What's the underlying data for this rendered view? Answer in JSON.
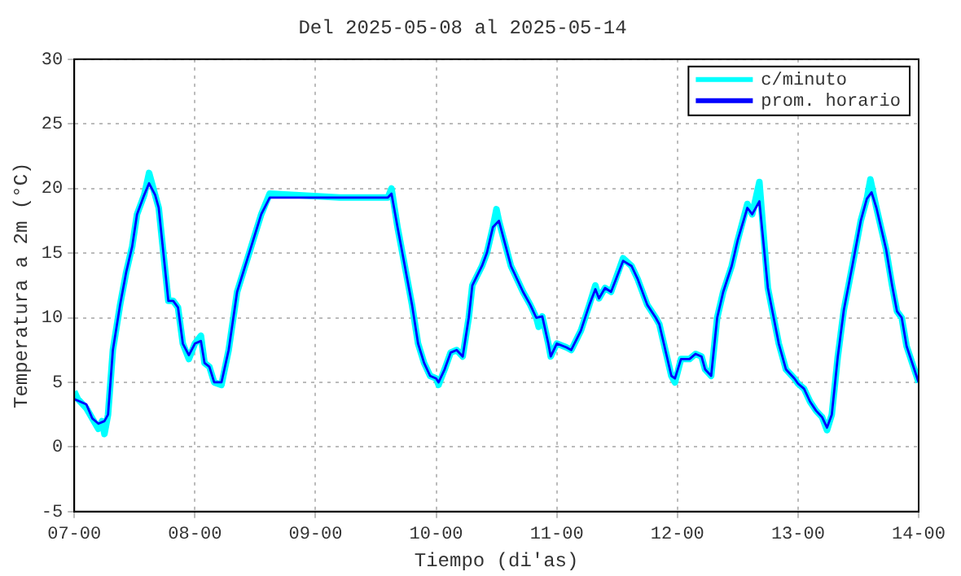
{
  "chart_data": {
    "type": "line",
    "title": "Del 2025-05-08 al 2025-05-14",
    "xlabel": "Tiempo (di'as)",
    "ylabel": "Temperatura a 2m (°C)",
    "xlim": [
      "2025-05-07T00:00",
      "2025-05-14T00:00"
    ],
    "xticks": [
      {
        "value": "2025-05-07T00:00",
        "label": "07-00"
      },
      {
        "value": "2025-05-08T00:00",
        "label": "08-00"
      },
      {
        "value": "2025-05-09T00:00",
        "label": "09-00"
      },
      {
        "value": "2025-05-10T00:00",
        "label": "10-00"
      },
      {
        "value": "2025-05-11T00:00",
        "label": "11-00"
      },
      {
        "value": "2025-05-12T00:00",
        "label": "12-00"
      },
      {
        "value": "2025-05-13T00:00",
        "label": "13-00"
      },
      {
        "value": "2025-05-14T00:00",
        "label": "14-00"
      }
    ],
    "ylim": [
      -5,
      30
    ],
    "yticks": [
      -5,
      0,
      5,
      10,
      15,
      20,
      25,
      30
    ],
    "grid": true,
    "legend": "top right",
    "marker": "none",
    "line_style": "solid",
    "series": [
      {
        "name": "c/minuto",
        "color": "#00ffff",
        "x": [
          "2025-05-07T00:00",
          "2025-05-07T00:43",
          "2025-05-07T01:12",
          "2025-05-07T02:24",
          "2025-05-07T03:36",
          "2025-05-07T04:48",
          "2025-05-07T05:31",
          "2025-05-07T06:00",
          "2025-05-07T06:43",
          "2025-05-07T07:41",
          "2025-05-07T09:07",
          "2025-05-07T10:19",
          "2025-05-07T11:31",
          "2025-05-07T12:29",
          "2025-05-07T13:55",
          "2025-05-07T14:53",
          "2025-05-07T16:05",
          "2025-05-07T16:48",
          "2025-05-07T18:00",
          "2025-05-07T18:43",
          "2025-05-07T19:41",
          "2025-05-07T20:38",
          "2025-05-07T21:36",
          "2025-05-07T22:48",
          "2025-05-08T00:00",
          "2025-05-08T01:12",
          "2025-05-08T01:55",
          "2025-05-08T02:53",
          "2025-05-08T03:50",
          "2025-05-08T05:17",
          "2025-05-08T06:43",
          "2025-05-08T08:24",
          "2025-05-08T10:48",
          "2025-05-08T13:12",
          "2025-05-08T14:53",
          "2025-05-09T04:48",
          "2025-05-09T14:24",
          "2025-05-09T15:07",
          "2025-05-09T16:19",
          "2025-05-09T17:17",
          "2025-05-09T19:12",
          "2025-05-09T20:24",
          "2025-05-09T21:36",
          "2025-05-09T22:48",
          "2025-05-10T00:00",
          "2025-05-10T00:29",
          "2025-05-10T01:41",
          "2025-05-10T02:53",
          "2025-05-10T04:05",
          "2025-05-10T05:17",
          "2025-05-10T06:29",
          "2025-05-10T07:12",
          "2025-05-10T09:07",
          "2025-05-10T10:05",
          "2025-05-10T11:17",
          "2025-05-10T12:00",
          "2025-05-10T12:29",
          "2025-05-10T14:53",
          "2025-05-10T17:17",
          "2025-05-10T18:43",
          "2025-05-10T19:55",
          "2025-05-10T20:24",
          "2025-05-10T21:07",
          "2025-05-10T22:19",
          "2025-05-10T22:48",
          "2025-05-11T00:00",
          "2025-05-11T01:55",
          "2025-05-11T02:53",
          "2025-05-11T04:48",
          "2025-05-11T06:29",
          "2025-05-11T07:41",
          "2025-05-11T08:24",
          "2025-05-11T09:36",
          "2025-05-11T10:48",
          "2025-05-11T13:12",
          "2025-05-11T14:53",
          "2025-05-11T16:05",
          "2025-05-11T18:00",
          "2025-05-11T19:41",
          "2025-05-11T20:24",
          "2025-05-11T21:36",
          "2025-05-11T22:48",
          "2025-05-11T23:31",
          "2025-05-12T00:43",
          "2025-05-12T02:24",
          "2025-05-12T03:36",
          "2025-05-12T04:48",
          "2025-05-12T05:31",
          "2025-05-12T06:43",
          "2025-05-12T07:55",
          "2025-05-12T09:07",
          "2025-05-12T10:48",
          "2025-05-12T12:00",
          "2025-05-12T13:55",
          "2025-05-12T14:53",
          "2025-05-12T16:19",
          "2025-05-12T18:00",
          "2025-05-12T20:10",
          "2025-05-12T21:36",
          "2025-05-12T23:17",
          "2025-05-13T00:00",
          "2025-05-13T01:12",
          "2025-05-13T02:24",
          "2025-05-13T03:36",
          "2025-05-13T04:48",
          "2025-05-13T05:46",
          "2025-05-13T06:43",
          "2025-05-13T07:55",
          "2025-05-13T09:07",
          "2025-05-13T10:48",
          "2025-05-13T12:29",
          "2025-05-13T13:41",
          "2025-05-13T14:24",
          "2025-05-13T15:36",
          "2025-05-13T17:31",
          "2025-05-13T18:43",
          "2025-05-13T19:41",
          "2025-05-13T20:38",
          "2025-05-13T21:36",
          "2025-05-14T00:00"
        ],
        "values": [
          4.3,
          3.7,
          3.5,
          3.0,
          2.2,
          1.4,
          2.0,
          1.0,
          2.5,
          7.5,
          11,
          13.5,
          15.5,
          18,
          19.5,
          21.2,
          19.5,
          18.5,
          14,
          11.3,
          11.3,
          10.8,
          8,
          6.8,
          8.0,
          8.6,
          6.5,
          6.2,
          5.0,
          4.8,
          7.5,
          12,
          15,
          18,
          19.6,
          19.3,
          19.3,
          20.0,
          17,
          15,
          11,
          8,
          6.5,
          5.5,
          5.3,
          4.8,
          6,
          7.3,
          7.5,
          7.0,
          10,
          12.5,
          14,
          15,
          17,
          18.4,
          17.5,
          14,
          12,
          11,
          10,
          9.3,
          10.1,
          8,
          7.0,
          8,
          7.7,
          7.5,
          9,
          11,
          12.5,
          11.5,
          12.3,
          12,
          14.6,
          14,
          13,
          11,
          10,
          9.5,
          7.5,
          5.5,
          5.0,
          6.8,
          6.8,
          7.2,
          7.0,
          6,
          5.5,
          10,
          12,
          14,
          16,
          18.8,
          18,
          20.5,
          12.3,
          8,
          6,
          5.3,
          4.9,
          4.5,
          3.5,
          2.8,
          2.3,
          1.3,
          2.5,
          7,
          10.6,
          14,
          17.5,
          19.2,
          20.7,
          18.5,
          15.3,
          12.5,
          10.5,
          10.0,
          7.8,
          5.0
        ]
      },
      {
        "name": "prom. horario",
        "color": "#0000ff",
        "x": [
          "2025-05-07T00:00",
          "2025-05-07T01:12",
          "2025-05-07T02:24",
          "2025-05-07T03:36",
          "2025-05-07T04:48",
          "2025-05-07T06:00",
          "2025-05-07T06:43",
          "2025-05-07T07:41",
          "2025-05-07T09:07",
          "2025-05-07T10:19",
          "2025-05-07T11:31",
          "2025-05-07T12:29",
          "2025-05-07T13:55",
          "2025-05-07T14:53",
          "2025-05-07T16:05",
          "2025-05-07T16:48",
          "2025-05-07T18:00",
          "2025-05-07T18:43",
          "2025-05-07T19:41",
          "2025-05-07T20:38",
          "2025-05-07T21:36",
          "2025-05-07T22:48",
          "2025-05-08T00:00",
          "2025-05-08T01:12",
          "2025-05-08T01:55",
          "2025-05-08T02:53",
          "2025-05-08T03:50",
          "2025-05-08T05:17",
          "2025-05-08T06:43",
          "2025-05-08T08:24",
          "2025-05-08T10:48",
          "2025-05-08T13:12",
          "2025-05-08T14:53",
          "2025-05-09T04:48",
          "2025-05-09T14:24",
          "2025-05-09T15:07",
          "2025-05-09T16:19",
          "2025-05-09T17:17",
          "2025-05-09T19:12",
          "2025-05-09T20:24",
          "2025-05-09T21:36",
          "2025-05-09T22:48",
          "2025-05-10T00:00",
          "2025-05-10T00:29",
          "2025-05-10T01:41",
          "2025-05-10T02:53",
          "2025-05-10T04:05",
          "2025-05-10T05:17",
          "2025-05-10T06:29",
          "2025-05-10T07:12",
          "2025-05-10T09:07",
          "2025-05-10T10:05",
          "2025-05-10T11:17",
          "2025-05-10T12:29",
          "2025-05-10T14:53",
          "2025-05-10T17:17",
          "2025-05-10T18:43",
          "2025-05-10T19:55",
          "2025-05-10T21:07",
          "2025-05-10T22:19",
          "2025-05-10T22:48",
          "2025-05-11T00:00",
          "2025-05-11T01:55",
          "2025-05-11T02:53",
          "2025-05-11T04:48",
          "2025-05-11T06:29",
          "2025-05-11T07:41",
          "2025-05-11T08:24",
          "2025-05-11T09:36",
          "2025-05-11T10:48",
          "2025-05-11T13:12",
          "2025-05-11T14:53",
          "2025-05-11T16:05",
          "2025-05-11T18:00",
          "2025-05-11T19:41",
          "2025-05-11T20:24",
          "2025-05-11T21:36",
          "2025-05-11T22:48",
          "2025-05-11T23:31",
          "2025-05-12T00:43",
          "2025-05-12T02:24",
          "2025-05-12T03:36",
          "2025-05-12T04:48",
          "2025-05-12T05:31",
          "2025-05-12T06:43",
          "2025-05-12T07:55",
          "2025-05-12T09:07",
          "2025-05-12T10:48",
          "2025-05-12T12:00",
          "2025-05-12T13:55",
          "2025-05-12T14:53",
          "2025-05-12T16:19",
          "2025-05-12T18:00",
          "2025-05-12T20:10",
          "2025-05-12T21:36",
          "2025-05-12T23:17",
          "2025-05-13T00:00",
          "2025-05-13T01:12",
          "2025-05-13T02:24",
          "2025-05-13T03:36",
          "2025-05-13T04:48",
          "2025-05-13T05:46",
          "2025-05-13T06:43",
          "2025-05-13T07:55",
          "2025-05-13T09:07",
          "2025-05-13T10:48",
          "2025-05-13T12:29",
          "2025-05-13T13:41",
          "2025-05-13T14:38",
          "2025-05-13T15:36",
          "2025-05-13T17:31",
          "2025-05-13T18:43",
          "2025-05-13T19:41",
          "2025-05-13T20:38",
          "2025-05-13T21:36",
          "2025-05-14T00:00"
        ],
        "values": [
          3.7,
          3.5,
          3.3,
          2.2,
          1.8,
          2.0,
          2.5,
          7.5,
          11,
          13.5,
          15.5,
          18,
          19.5,
          20.4,
          19.5,
          18.5,
          14,
          11.3,
          11.3,
          10.8,
          8,
          7.1,
          8.0,
          8.2,
          6.5,
          6.2,
          5.0,
          5.0,
          7.5,
          12,
          15,
          18,
          19.3,
          19.3,
          19.3,
          19.6,
          17,
          15,
          11,
          8,
          6.5,
          5.5,
          5.3,
          5.0,
          6,
          7.3,
          7.5,
          7.0,
          10,
          12.5,
          14,
          15,
          17,
          17.5,
          14,
          12,
          11,
          10,
          10.1,
          8,
          7.0,
          8,
          7.7,
          7.5,
          9,
          11,
          12.2,
          11.5,
          12.3,
          12,
          14.4,
          14,
          13,
          11,
          10,
          9.5,
          7.5,
          5.5,
          5.3,
          6.8,
          6.8,
          7.2,
          7.0,
          6,
          5.5,
          10,
          12,
          14,
          16,
          18.5,
          18,
          19,
          12.3,
          8,
          6,
          5.3,
          4.9,
          4.5,
          3.5,
          2.8,
          2.3,
          1.5,
          2.5,
          7,
          10.6,
          14,
          17.5,
          19.2,
          19.7,
          18.5,
          15.3,
          12.5,
          10.5,
          10.0,
          7.8,
          5.0
        ]
      }
    ]
  }
}
